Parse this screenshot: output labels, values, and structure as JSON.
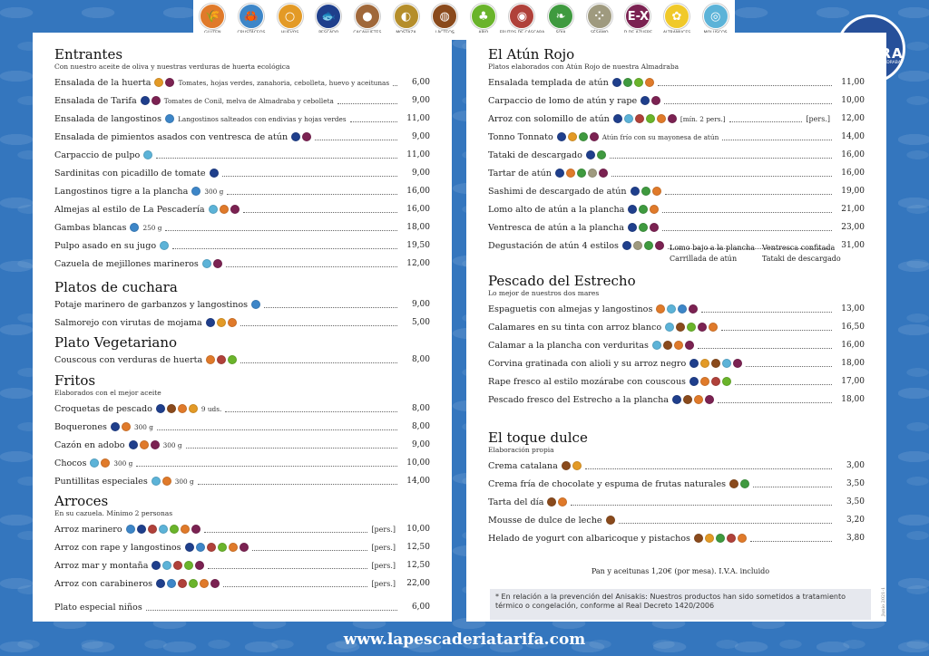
{
  "allergens": [
    {
      "label": "GLUTEN",
      "color": "#e07a2a",
      "glyph": "🌾"
    },
    {
      "label": "CRUSTÁCEOS",
      "color": "#3d86c8",
      "glyph": "🦀"
    },
    {
      "label": "HUEVOS",
      "color": "#e39a26",
      "glyph": "○"
    },
    {
      "label": "PESCADO",
      "color": "#1f3f8c",
      "glyph": "🐟"
    },
    {
      "label": "CACAHUETES",
      "color": "#a0683a",
      "glyph": "●"
    },
    {
      "label": "MOSTAZA",
      "color": "#b58e2b",
      "glyph": "◐"
    },
    {
      "label": "LÁCTEOS",
      "color": "#8a4a1c",
      "glyph": "◍"
    },
    {
      "label": "APIO",
      "color": "#6ab42b",
      "glyph": "♣"
    },
    {
      "label": "FRUTOS DE CÁSCARA",
      "color": "#b0413a",
      "glyph": "◉"
    },
    {
      "label": "SOJA",
      "color": "#3f9a3f",
      "glyph": "❧"
    },
    {
      "label": "SÉSAMO",
      "color": "#9f9a7f",
      "glyph": "⁘"
    },
    {
      "label": "D.DE AZUFRE",
      "color": "#7b2252",
      "glyph": "E-X"
    },
    {
      "label": "ALTRAMUCES",
      "color": "#f0c92a",
      "glyph": "✿"
    },
    {
      "label": "MOLUSCOS",
      "color": "#5cb3d8",
      "glyph": "◎"
    }
  ],
  "icon_colors": {
    "g": "#e07a2a",
    "c": "#3d86c8",
    "h": "#e39a26",
    "p": "#1f3f8c",
    "l": "#8a4a1c",
    "a": "#6ab42b",
    "f": "#b0413a",
    "s": "#3f9a3f",
    "z": "#7b2252",
    "m": "#5cb3d8",
    "ss": "#9f9a7f",
    "al": "#f0c92a",
    "mo": "#b58e2b"
  },
  "logo": {
    "name": "GADIRA",
    "tagline": "PRODUCTOS DE ALMADRABA"
  },
  "left": {
    "entrantes": {
      "title": "Entrantes",
      "subtitle": "Con nuestro aceite de oliva y nuestras verduras de huerta ecológica",
      "items": [
        {
          "name": "Ensalada de la huerta",
          "icons": [
            "h",
            "z"
          ],
          "note": "Tomates, hojas verdes, zanahoria, cebolleta, huevo y aceitunas",
          "price": "6,00"
        },
        {
          "name": "Ensalada de Tarifa",
          "icons": [
            "p",
            "z"
          ],
          "note": "Tomates de Conil, melva de Almadraba y cebolleta",
          "price": "9,00"
        },
        {
          "name": "Ensalada de langostinos",
          "icons": [
            "c"
          ],
          "note": "Langostinos salteados con endivias y hojas verdes",
          "price": "11,00"
        },
        {
          "name": "Ensalada de pimientos asados con ventresca de atún",
          "icons": [
            "p",
            "z"
          ],
          "note": "",
          "price": "9,00"
        },
        {
          "name": "Carpaccio de pulpo",
          "icons": [
            "m"
          ],
          "note": "",
          "price": "11,00"
        },
        {
          "name": "Sardinitas con picadillo de tomate",
          "icons": [
            "p"
          ],
          "note": "",
          "price": "9,00"
        },
        {
          "name": "Langostinos tigre a la plancha",
          "icons": [
            "c"
          ],
          "note": "300 g",
          "price": "16,00"
        },
        {
          "name": "Almejas al estilo de La Pescadería",
          "icons": [
            "m",
            "g",
            "z"
          ],
          "note": "",
          "price": "16,00"
        },
        {
          "name": "Gambas blancas",
          "icons": [
            "c"
          ],
          "note": "250 g",
          "price": "18,00"
        },
        {
          "name": "Pulpo asado en su jugo",
          "icons": [
            "m"
          ],
          "note": "",
          "price": "19,50"
        },
        {
          "name": "Cazuela de mejillones marineros",
          "icons": [
            "m",
            "z"
          ],
          "note": "",
          "price": "12,00"
        }
      ]
    },
    "cuchara": {
      "title": "Platos de cuchara",
      "items": [
        {
          "name": "Potaje marinero de garbanzos y langostinos",
          "icons": [
            "c"
          ],
          "note": "",
          "price": "9,00"
        },
        {
          "name": "Salmorejo con virutas de mojama",
          "icons": [
            "p",
            "h",
            "g"
          ],
          "note": "",
          "price": "5,00"
        }
      ]
    },
    "vegetariano": {
      "title": "Plato Vegetariano",
      "items": [
        {
          "name": "Couscous con verduras de huerta",
          "icons": [
            "g",
            "f",
            "a"
          ],
          "note": "",
          "price": "8,00"
        }
      ]
    },
    "fritos": {
      "title": "Fritos",
      "subtitle": "Elaborados con el mejor aceite",
      "items": [
        {
          "name": "Croquetas de pescado",
          "icons": [
            "p",
            "l",
            "g",
            "h"
          ],
          "note": "9 uds.",
          "price": "8,00"
        },
        {
          "name": "Boquerones",
          "icons": [
            "p",
            "g"
          ],
          "note": "300 g",
          "price": "8,00"
        },
        {
          "name": "Cazón en adobo",
          "icons": [
            "p",
            "g",
            "z"
          ],
          "note": "300 g",
          "price": "9,00"
        },
        {
          "name": "Chocos",
          "icons": [
            "m",
            "g"
          ],
          "note": "300 g",
          "price": "10,00"
        },
        {
          "name": "Puntillitas especiales",
          "icons": [
            "m",
            "g"
          ],
          "note": "300 g",
          "price": "14,00"
        }
      ]
    },
    "arroces": {
      "title": "Arroces",
      "subtitle": "En su cazuela. Mínimo 2 personas",
      "items": [
        {
          "name": "Arroz marinero",
          "icons": [
            "c",
            "p",
            "f",
            "m",
            "a",
            "g",
            "z"
          ],
          "pers": "[pers.]",
          "price": "10,00"
        },
        {
          "name": "Arroz con rape y langostinos",
          "icons": [
            "p",
            "c",
            "f",
            "a",
            "g",
            "z"
          ],
          "pers": "[pers.]",
          "price": "12,50"
        },
        {
          "name": "Arroz mar y montaña",
          "icons": [
            "p",
            "m",
            "f",
            "a",
            "z"
          ],
          "pers": "[pers.]",
          "price": "12,50"
        },
        {
          "name": "Arroz con carabineros",
          "icons": [
            "p",
            "c",
            "f",
            "a",
            "g",
            "z"
          ],
          "pers": "[pers.]",
          "price": "22,00"
        }
      ],
      "kids": {
        "name": "Plato especial niños",
        "price": "6,00"
      }
    }
  },
  "right": {
    "atun": {
      "title": "El Atún Rojo",
      "subtitle": "Platos elaborados con Atún Rojo de nuestra Almadraba",
      "items": [
        {
          "name": "Ensalada templada de atún",
          "icons": [
            "p",
            "s",
            "a",
            "g"
          ],
          "note": "",
          "price": "11,00"
        },
        {
          "name": "Carpaccio de lomo de atún y rape",
          "icons": [
            "p",
            "z"
          ],
          "note": "",
          "price": "10,00"
        },
        {
          "name": "Arroz con solomillo de atún",
          "icons": [
            "p",
            "m",
            "f",
            "a",
            "g",
            "z"
          ],
          "note": "[mín. 2 pers.]",
          "pers": "[pers.]",
          "price": "12,00"
        },
        {
          "name": "Tonno Tonnato",
          "icons": [
            "p",
            "h",
            "s",
            "z"
          ],
          "note": "Atún frío con su mayonesa de atún",
          "price": "14,00"
        },
        {
          "name": "Tataki de descargado",
          "icons": [
            "p",
            "s"
          ],
          "note": "",
          "price": "16,00"
        },
        {
          "name": "Tartar de atún",
          "icons": [
            "p",
            "g",
            "s",
            "ss",
            "z"
          ],
          "note": "",
          "price": "16,00"
        },
        {
          "name": "Sashimi de descargado de atún",
          "icons": [
            "p",
            "s",
            "g"
          ],
          "note": "",
          "price": "19,00"
        },
        {
          "name": "Lomo alto de atún a la plancha",
          "icons": [
            "p",
            "s",
            "g"
          ],
          "note": "",
          "price": "21,00"
        },
        {
          "name": "Ventresca de atún a la plancha",
          "icons": [
            "p",
            "s",
            "z"
          ],
          "note": "",
          "price": "23,00"
        },
        {
          "name": "Degustación de atún 4 estilos",
          "icons": [
            "p",
            "ss",
            "s",
            "z"
          ],
          "note": "",
          "price": "31,00"
        }
      ],
      "degustacion": [
        "Lomo bajo a la plancha",
        "Ventresca confitada",
        "Carrillada de atún",
        "Tataki de descargado"
      ]
    },
    "pescado": {
      "title": "Pescado del Estrecho",
      "subtitle": "Lo mejor de nuestros dos mares",
      "items": [
        {
          "name": "Espaguetis con almejas y langostinos",
          "icons": [
            "g",
            "m",
            "c",
            "z"
          ],
          "note": "",
          "price": "13,00"
        },
        {
          "name": "Calamares en su tinta con arroz blanco",
          "icons": [
            "m",
            "l",
            "a",
            "z",
            "g"
          ],
          "note": "",
          "price": "16,50"
        },
        {
          "name": "Calamar a la plancha con verduritas",
          "icons": [
            "m",
            "l",
            "g",
            "z"
          ],
          "note": "",
          "price": "16,00"
        },
        {
          "name": "Corvina gratinada con alioli y su arroz negro",
          "icons": [
            "p",
            "h",
            "l",
            "m",
            "z"
          ],
          "note": "",
          "price": "18,00"
        },
        {
          "name": "Rape fresco al estilo mozárabe con couscous",
          "icons": [
            "p",
            "g",
            "f",
            "a"
          ],
          "note": "",
          "price": "17,00"
        },
        {
          "name": "Pescado fresco del Estrecho a la plancha",
          "icons": [
            "p",
            "l",
            "g",
            "z"
          ],
          "note": "",
          "price": "18,00"
        }
      ]
    },
    "dulce": {
      "title": "El toque dulce",
      "subtitle": "Elaboración propia",
      "items": [
        {
          "name": "Crema catalana",
          "icons": [
            "l",
            "h"
          ],
          "note": "",
          "price": "3,00"
        },
        {
          "name": "Crema fría de chocolate y espuma de frutas naturales",
          "icons": [
            "l",
            "s"
          ],
          "note": "",
          "price": "3,50"
        },
        {
          "name": "Tarta del día",
          "icons": [
            "l",
            "g"
          ],
          "note": "",
          "price": "3,50"
        },
        {
          "name": "Mousse de dulce de leche",
          "icons": [
            "l"
          ],
          "note": "",
          "price": "3,20"
        },
        {
          "name": "Helado de yogurt con albaricoque y pistachos",
          "icons": [
            "l",
            "h",
            "s",
            "f",
            "g"
          ],
          "note": "",
          "price": "3,80"
        }
      ]
    },
    "bread": "Pan y aceitunas 1,20€ (por mesa). I.V.A. incluido",
    "anisakis": "* En relación a la prevención del Anisakis: Nuestros productos han sido sometidos a tratamiento térmico o congelación, conforme al Real Decreto 1420/2006",
    "version": "Junio 2021-1"
  },
  "url": "www.lapescaderiatarifa.com"
}
